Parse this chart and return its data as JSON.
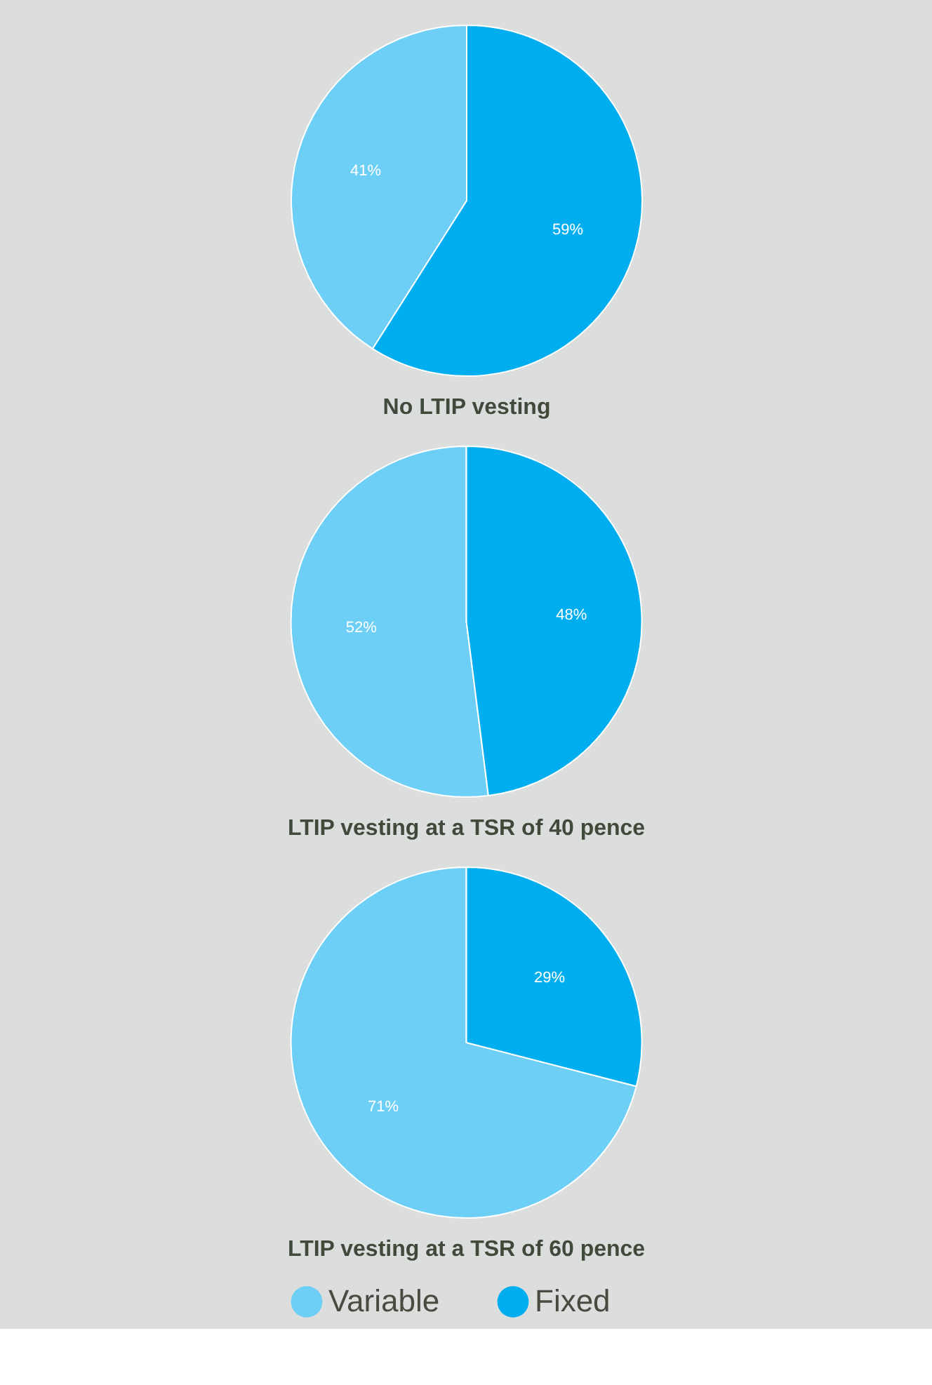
{
  "chart_data": [
    {
      "type": "pie",
      "title": "No LTIP vesting",
      "categories": [
        "Variable",
        "Fixed"
      ],
      "values": [
        41,
        59
      ],
      "colors": [
        "#6dcff6",
        "#00aeef"
      ],
      "value_labels": [
        "41%",
        "59%"
      ],
      "legend": "bottom"
    },
    {
      "type": "pie",
      "title": "LTIP vesting at a TSR of 40 pence",
      "categories": [
        null,
        null
      ],
      "values": [
        52,
        48
      ],
      "colors": [
        "#6dcff6",
        "#00aeef"
      ],
      "value_labels": [
        "52%",
        "48%"
      ]
    },
    {
      "type": "pie",
      "title": "LTIP vesting at a TSR of 60 pence",
      "categories": [
        null,
        null
      ],
      "values": [
        71,
        29
      ],
      "colors": [
        "#6dcff6",
        "#00aeef"
      ],
      "value_labels": [
        "71%",
        "29%"
      ]
    }
  ]
}
